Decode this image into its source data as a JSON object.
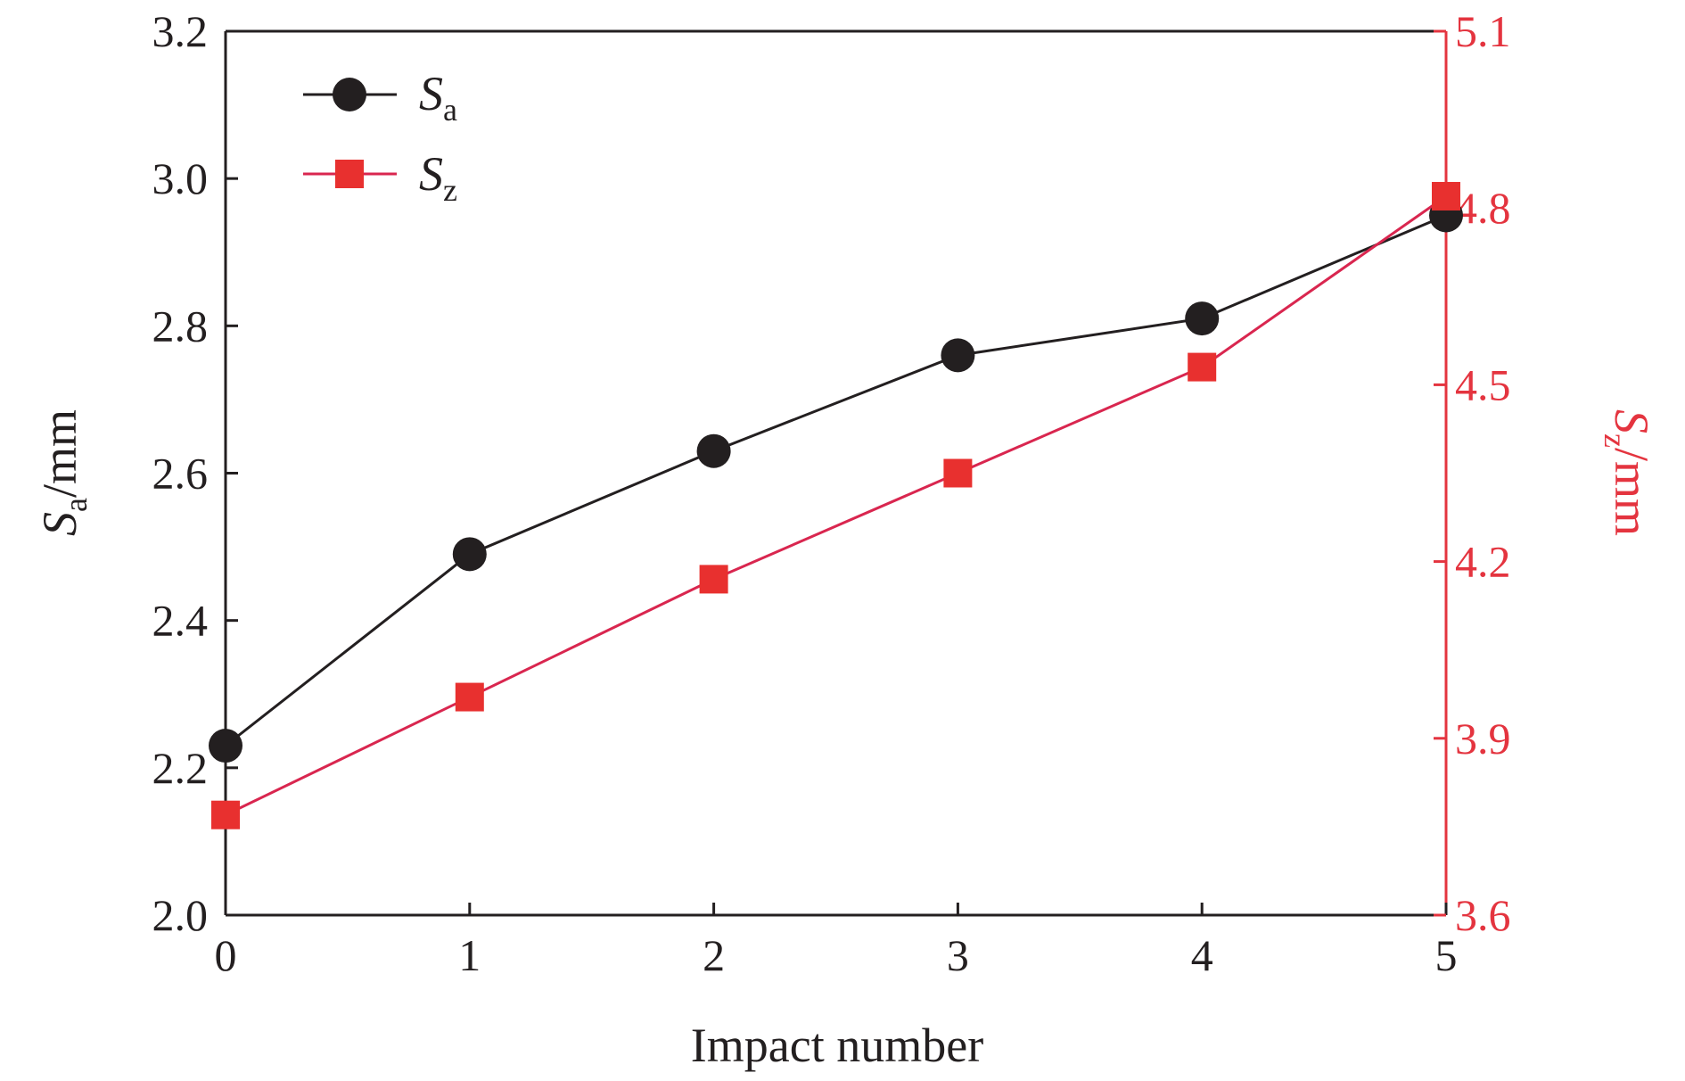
{
  "chart_data": {
    "type": "line",
    "x_axis": {
      "label": "Impact number",
      "range": [
        0,
        5
      ],
      "ticks": [
        "0",
        "1",
        "2",
        "3",
        "4",
        "5"
      ]
    },
    "y_left": {
      "label_main": "S",
      "label_sub": "a",
      "label_unit": "/mm",
      "range": [
        2.0,
        3.2
      ],
      "ticks": [
        "2.0",
        "2.2",
        "2.4",
        "2.6",
        "2.8",
        "3.0",
        "3.2"
      ],
      "color": "#231f20"
    },
    "y_right": {
      "label_main": "S",
      "label_sub": "z",
      "label_unit": "/mm",
      "range": [
        3.6,
        5.1
      ],
      "ticks": [
        "3.6",
        "3.9",
        "4.2",
        "4.5",
        "4.8",
        "5.1"
      ],
      "color": "#e4343f"
    },
    "x": [
      0,
      1,
      2,
      3,
      4,
      5
    ],
    "series": [
      {
        "name_main": "S",
        "name_sub": "a",
        "axis": "left",
        "marker": "circle",
        "marker_color": "#231f20",
        "line_color": "#231f20",
        "values": [
          2.23,
          2.49,
          2.63,
          2.76,
          2.81,
          2.95
        ]
      },
      {
        "name_main": "S",
        "name_sub": "z",
        "axis": "right",
        "marker": "square",
        "marker_color": "#e8302f",
        "line_color": "#d9264f",
        "values": [
          3.77,
          3.97,
          4.17,
          4.35,
          4.53,
          4.82
        ]
      }
    ],
    "legend_position": "top-left",
    "grid": false
  }
}
